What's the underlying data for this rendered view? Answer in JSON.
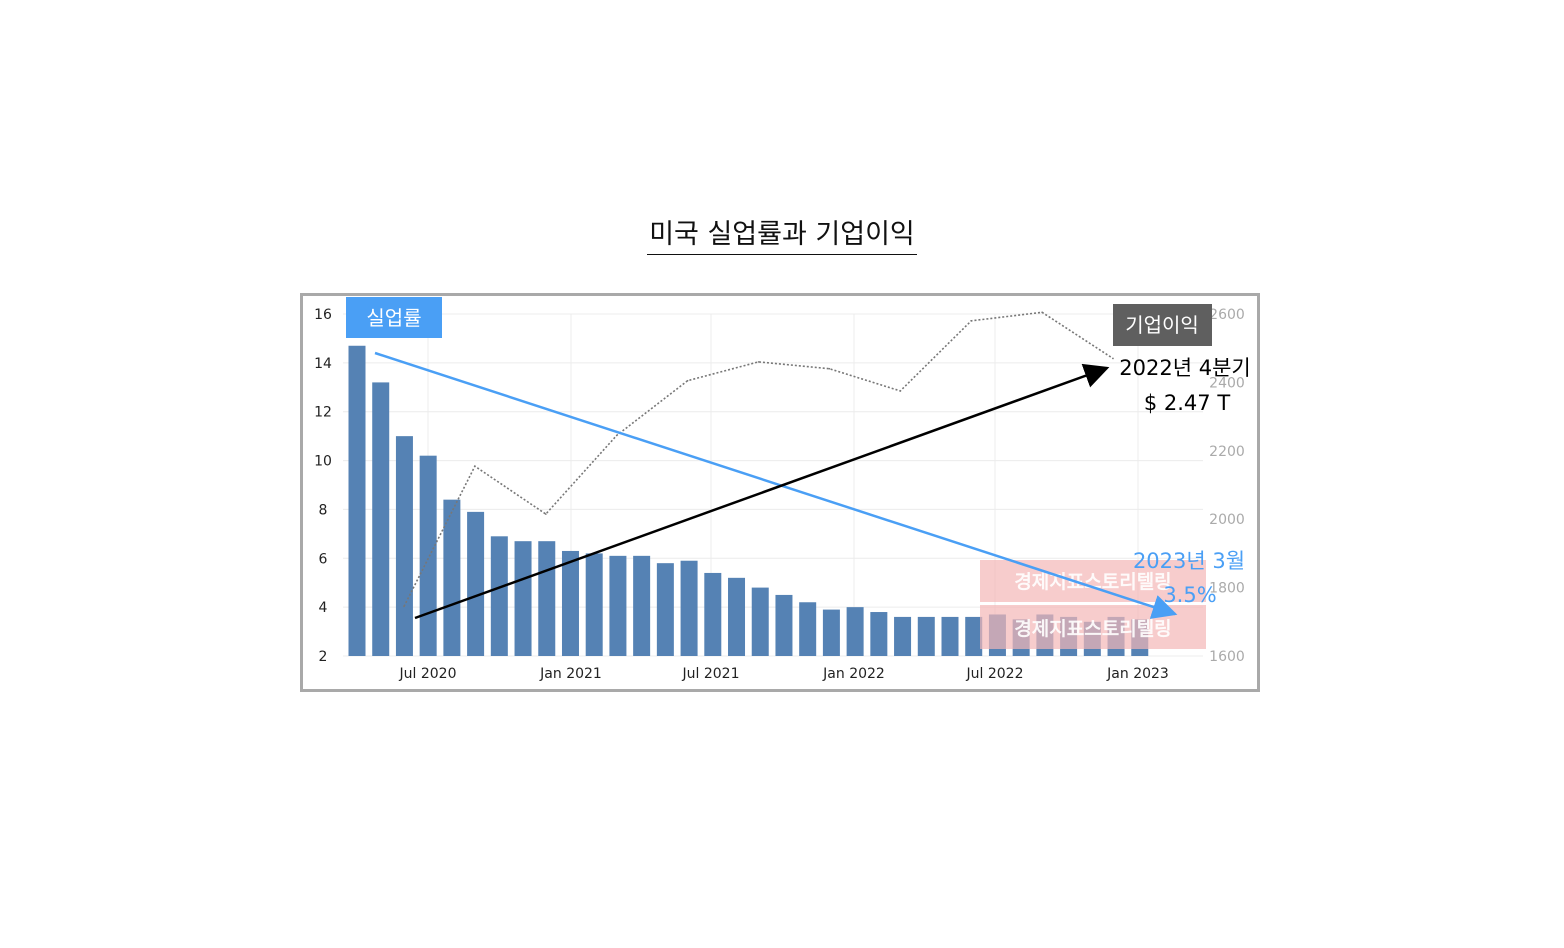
{
  "page_title": "미국 실업률과 기업이익",
  "chart_data": {
    "type": "bar",
    "left_axis": {
      "ticks": [
        "16",
        "14",
        "12",
        "10",
        "8",
        "6",
        "4",
        "2"
      ],
      "ylim": [
        2,
        16
      ]
    },
    "right_axis": {
      "ticks": [
        "2600",
        "2400",
        "2200",
        "2000",
        "1800",
        "1600"
      ],
      "ylim": [
        1600,
        2600
      ]
    },
    "x_tick_labels": [
      "Jul 2020",
      "Jan 2021",
      "Jul 2021",
      "Jan 2022",
      "Jul 2022",
      "Jan 2023"
    ],
    "series": [
      {
        "name": "실업률",
        "type": "bar",
        "axis": "left",
        "color": "#5582b4",
        "values": [
          14.7,
          13.2,
          11.0,
          10.2,
          8.4,
          7.9,
          6.9,
          6.7,
          6.7,
          6.3,
          6.2,
          6.1,
          6.1,
          5.8,
          5.9,
          5.4,
          5.2,
          4.8,
          4.5,
          4.2,
          3.9,
          4.0,
          3.8,
          3.6,
          3.6,
          3.6,
          3.6,
          3.7,
          3.5,
          3.7,
          3.6,
          3.4,
          3.6,
          3.5
        ]
      },
      {
        "name": "기업이익",
        "type": "line",
        "axis": "right",
        "color": "#777777",
        "values": [
          1745,
          2155,
          2015,
          2245,
          2405,
          2460,
          2440,
          2375,
          2580,
          2605,
          2470
        ]
      }
    ],
    "grid": true,
    "annotations": {
      "unemployment_label": "실업률",
      "profit_label": "기업이익",
      "profit_note_line1": "2022년 4분기",
      "profit_note_line2": "$ 2.47 T",
      "unemp_note_line1": "2023년 3월",
      "unemp_note_line2": "3.5%",
      "watermark": "경제지표스토리텔링"
    }
  },
  "colors": {
    "bar": "#5582b4",
    "profit_line": "#777777",
    "unemp_badge": "#4a9ff5",
    "profit_badge": "#5f5f5f",
    "unemp_arrow": "#4a9ff5",
    "profit_arrow": "#000000",
    "unemp_note": "#4a9ff5",
    "watermark_box": "#f3b6b6"
  }
}
